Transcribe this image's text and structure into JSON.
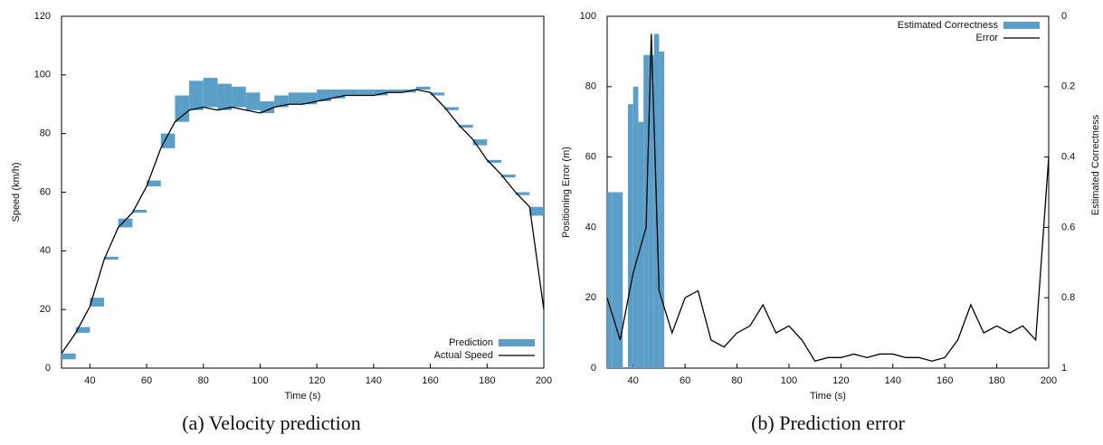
{
  "chart_data": [
    {
      "type": "line",
      "xlabel": "Time (s)",
      "ylabel": "Speed (km/h)",
      "caption": "(a)  Velocity prediction",
      "x": [
        30,
        35,
        40,
        45,
        50,
        55,
        60,
        65,
        70,
        75,
        80,
        85,
        90,
        95,
        100,
        105,
        110,
        115,
        120,
        125,
        130,
        135,
        140,
        145,
        150,
        155,
        160,
        165,
        170,
        175,
        180,
        185,
        190,
        195,
        200
      ],
      "series": [
        {
          "name": "Prediction",
          "color": "#5b9fc8",
          "values": [
            3,
            14,
            24,
            38,
            51,
            54,
            64,
            80,
            93,
            98,
            99,
            97,
            96,
            94,
            91,
            93,
            94,
            94,
            95,
            95,
            95,
            95,
            95,
            95,
            95,
            96,
            93,
            88,
            82,
            76,
            70,
            65,
            59,
            52,
            6
          ]
        },
        {
          "name": "Actual Speed",
          "color": "#000000",
          "values": [
            5,
            12,
            21,
            37,
            48,
            53,
            62,
            75,
            84,
            88,
            89,
            88,
            89,
            88,
            87,
            89,
            90,
            90,
            91,
            92,
            93,
            93,
            93,
            94,
            94,
            95,
            94,
            89,
            83,
            78,
            71,
            66,
            60,
            55,
            20
          ]
        }
      ],
      "xlim": [
        30,
        200
      ],
      "xticks": [
        40,
        60,
        80,
        100,
        120,
        140,
        160,
        180,
        200
      ],
      "ylim": [
        0,
        120
      ],
      "yticks": [
        0,
        20,
        40,
        60,
        80,
        100,
        120
      ],
      "legend": "lower right"
    },
    {
      "type": "combo",
      "xlabel": "Time (s)",
      "ylabel": "Positioning Error (m)",
      "y2label": "Estimated Correctness",
      "caption": "(b)  Prediction error",
      "series": [
        {
          "name": "Estimated Correctness",
          "color": "#5b9fc8",
          "axis": "y2",
          "x": [
            30,
            32,
            34,
            38,
            40,
            42,
            44,
            46,
            48,
            50
          ],
          "values": [
            0.5,
            0.5,
            0.5,
            0.25,
            0.2,
            0.3,
            0.11,
            0.11,
            0.05,
            0.1
          ]
        },
        {
          "name": "Error",
          "color": "#000000",
          "x": [
            30,
            35,
            40,
            45,
            47,
            50,
            55,
            60,
            65,
            70,
            75,
            80,
            85,
            90,
            95,
            100,
            105,
            110,
            115,
            120,
            125,
            130,
            135,
            140,
            145,
            150,
            155,
            160,
            165,
            170,
            175,
            180,
            185,
            190,
            195,
            200
          ],
          "values": [
            20,
            8,
            27,
            40,
            95,
            22,
            10,
            20,
            22,
            8,
            6,
            10,
            12,
            18,
            10,
            12,
            8,
            2,
            3,
            3,
            4,
            3,
            4,
            4,
            3,
            3,
            2,
            3,
            8,
            18,
            10,
            12,
            10,
            12,
            8,
            60
          ]
        }
      ],
      "xlim": [
        30,
        200
      ],
      "xticks": [
        40,
        60,
        80,
        100,
        120,
        140,
        160,
        180,
        200
      ],
      "ylim": [
        0,
        100
      ],
      "yticks": [
        0,
        20,
        40,
        60,
        80,
        100
      ],
      "y2lim": [
        1,
        0
      ],
      "y2ticks": [
        0,
        0.2,
        0.4,
        0.6,
        0.8,
        1
      ],
      "legend": "upper right"
    }
  ]
}
